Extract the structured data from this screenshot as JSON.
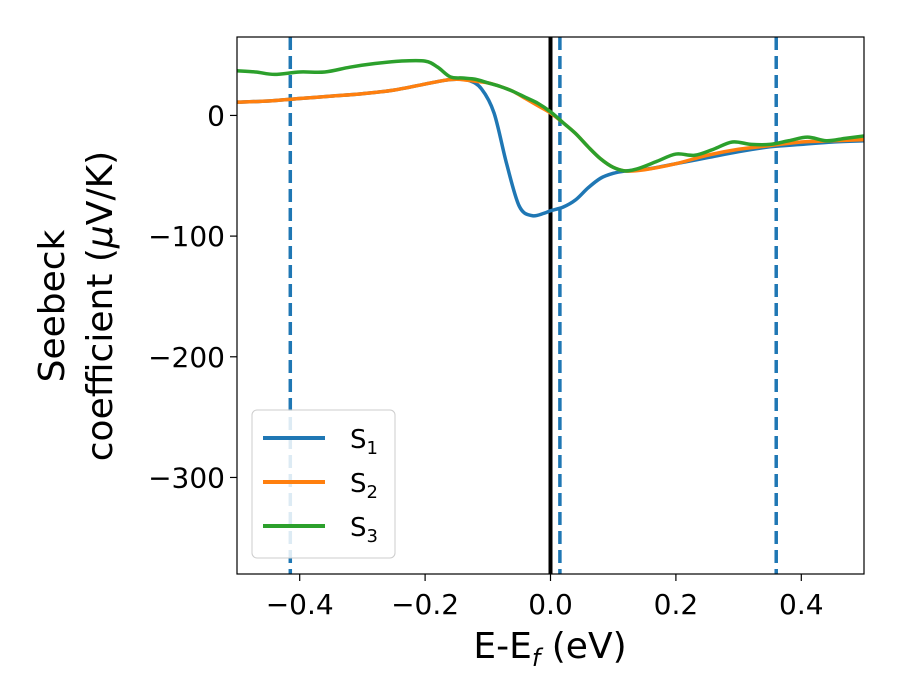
{
  "chart_data": {
    "type": "line",
    "title": "",
    "xlabel": {
      "main": "E-E",
      "sub": "f",
      "suffix": " (eV)"
    },
    "ylabel": {
      "line1": "Seebeck",
      "line2_prefix": "coefficient  (",
      "mu": "μ",
      "line2_suffix": "V/K)"
    },
    "xlim": [
      -0.5,
      0.5
    ],
    "ylim": [
      -380,
      65
    ],
    "x_ticks": [
      -0.4,
      -0.2,
      0.0,
      0.2,
      0.4
    ],
    "x_tick_labels": [
      "−0.4",
      "−0.2",
      "0.0",
      "0.2",
      "0.4"
    ],
    "y_ticks": [
      0,
      -100,
      -200,
      -300
    ],
    "y_tick_labels": [
      "0",
      "−100",
      "−200",
      "−300"
    ],
    "vlines": [
      {
        "x": 0.0,
        "style": "solid",
        "color": "#000000"
      },
      {
        "x": -0.415,
        "style": "dashed",
        "color": "#1f77b4"
      },
      {
        "x": 0.015,
        "style": "dashed",
        "color": "#1f77b4"
      },
      {
        "x": 0.36,
        "style": "dashed",
        "color": "#1f77b4"
      }
    ],
    "legend_position": "lower-left",
    "series": [
      {
        "name": "S",
        "sub": "1",
        "color": "#1f77b4",
        "x": [
          -0.5,
          -0.45,
          -0.4,
          -0.35,
          -0.3,
          -0.25,
          -0.2,
          -0.17,
          -0.15,
          -0.13,
          -0.11,
          -0.09,
          -0.07,
          -0.05,
          -0.03,
          -0.01,
          0.0,
          0.02,
          0.04,
          0.06,
          0.08,
          0.1,
          0.12,
          0.14,
          0.16,
          0.2,
          0.25,
          0.3,
          0.35,
          0.4,
          0.45,
          0.5
        ],
        "y": [
          11,
          12,
          14,
          16,
          18,
          21,
          26,
          29,
          30,
          29,
          22,
          2,
          -40,
          -75,
          -83,
          -81,
          -79,
          -76,
          -70,
          -60,
          -52,
          -48,
          -46,
          -45,
          -44,
          -40,
          -35,
          -30,
          -26,
          -24,
          -22,
          -21
        ]
      },
      {
        "name": "S",
        "sub": "2",
        "color": "#ff7f0e",
        "x": [
          -0.5,
          -0.45,
          -0.4,
          -0.35,
          -0.3,
          -0.25,
          -0.2,
          -0.17,
          -0.15,
          -0.13,
          -0.1,
          -0.08,
          -0.06,
          -0.04,
          -0.02,
          0.0,
          0.02,
          0.04,
          0.06,
          0.08,
          0.1,
          0.12,
          0.15,
          0.2,
          0.25,
          0.3,
          0.35,
          0.4,
          0.45,
          0.5
        ],
        "y": [
          11,
          12,
          14,
          16,
          18,
          21,
          26,
          29,
          30,
          29,
          27,
          24,
          20,
          14,
          8,
          2,
          -6,
          -15,
          -26,
          -36,
          -43,
          -46,
          -45,
          -40,
          -33,
          -28,
          -25,
          -22,
          -21,
          -20
        ]
      },
      {
        "name": "S",
        "sub": "3",
        "color": "#2ca02c",
        "x": [
          -0.5,
          -0.47,
          -0.44,
          -0.4,
          -0.36,
          -0.32,
          -0.28,
          -0.24,
          -0.2,
          -0.18,
          -0.16,
          -0.14,
          -0.12,
          -0.1,
          -0.08,
          -0.06,
          -0.04,
          -0.02,
          0.0,
          0.02,
          0.04,
          0.06,
          0.08,
          0.1,
          0.12,
          0.14,
          0.17,
          0.2,
          0.23,
          0.26,
          0.29,
          0.32,
          0.35,
          0.38,
          0.41,
          0.44,
          0.47,
          0.5
        ],
        "y": [
          37,
          36,
          34,
          36,
          36,
          40,
          43,
          45,
          45,
          40,
          32,
          31,
          30,
          27,
          24,
          20,
          15,
          10,
          3,
          -6,
          -15,
          -26,
          -36,
          -43,
          -46,
          -44,
          -38,
          -32,
          -33,
          -28,
          -22,
          -24,
          -24,
          -21,
          -18,
          -21,
          -19,
          -17
        ]
      }
    ]
  }
}
